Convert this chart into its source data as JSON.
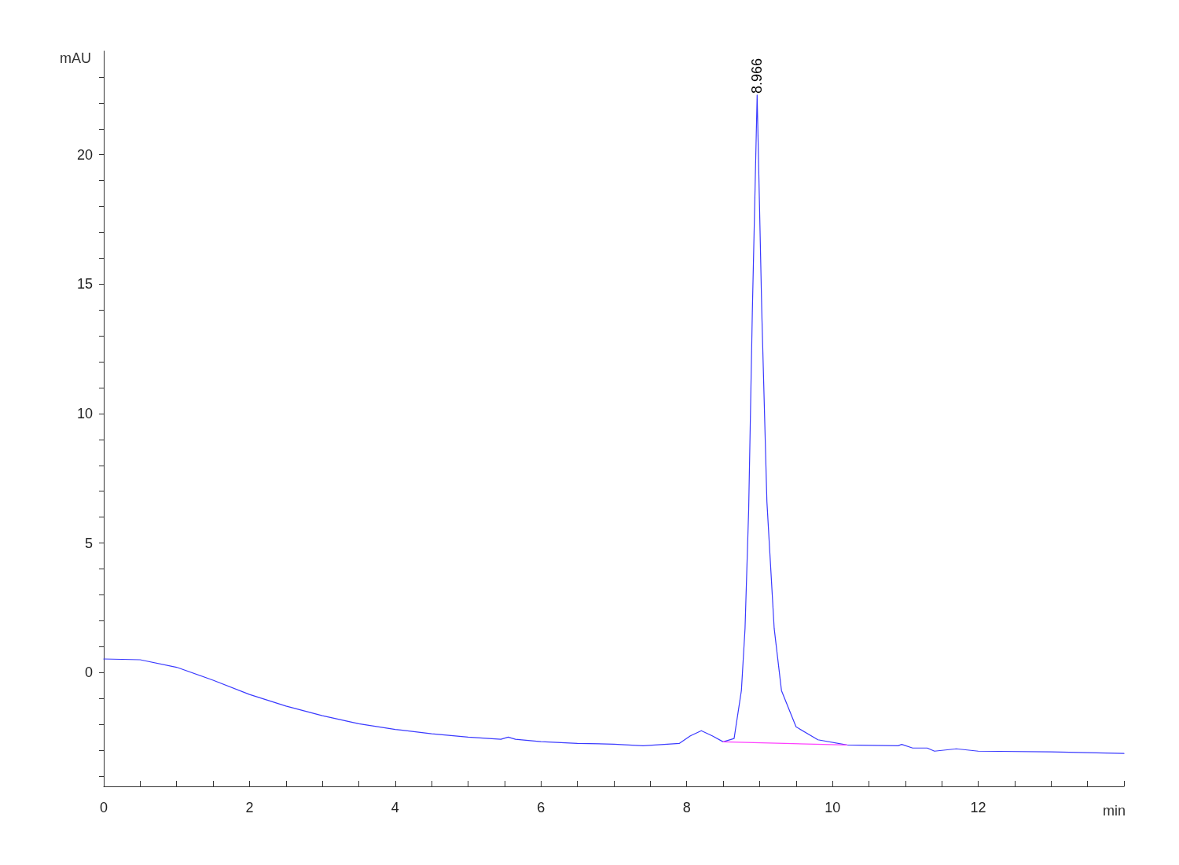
{
  "chart_data": {
    "type": "line",
    "xlabel": "min",
    "ylabel": "mAU",
    "xlim": [
      0,
      14
    ],
    "ylim": [
      -4.4,
      24
    ],
    "xticks": [
      0,
      {
        "value": 0.5,
        "label": null
      },
      {
        "value": 1,
        "label": null
      },
      {
        "value": 1.5,
        "label": null
      },
      2,
      {
        "value": 2.5,
        "label": null
      },
      {
        "value": 3,
        "label": null
      },
      {
        "value": 3.5,
        "label": null
      },
      4,
      {
        "value": 4.5,
        "label": null
      },
      {
        "value": 5,
        "label": null
      },
      {
        "value": 5.5,
        "label": null
      },
      6,
      {
        "value": 6.5,
        "label": null
      },
      {
        "value": 7,
        "label": null
      },
      {
        "value": 7.5,
        "label": null
      },
      8,
      {
        "value": 8.5,
        "label": null
      },
      {
        "value": 9,
        "label": null
      },
      {
        "value": 9.5,
        "label": null
      },
      10,
      {
        "value": 10.5,
        "label": null
      },
      {
        "value": 11,
        "label": null
      },
      {
        "value": 11.5,
        "label": null
      },
      12,
      {
        "value": 12.5,
        "label": null
      },
      {
        "value": 13,
        "label": null
      },
      {
        "value": 13.5,
        "label": null
      },
      {
        "value": 14,
        "label": null
      }
    ],
    "yticks": [
      {
        "value": -4,
        "label": null
      },
      {
        "value": -3,
        "label": null
      },
      {
        "value": -2,
        "label": null
      },
      {
        "value": -1,
        "label": null
      },
      0,
      {
        "value": 1,
        "label": null
      },
      {
        "value": 2,
        "label": null
      },
      {
        "value": 3,
        "label": null
      },
      {
        "value": 4,
        "label": null
      },
      5,
      {
        "value": 6,
        "label": null
      },
      {
        "value": 7,
        "label": null
      },
      {
        "value": 8,
        "label": null
      },
      {
        "value": 9,
        "label": null
      },
      10,
      {
        "value": 11,
        "label": null
      },
      {
        "value": 12,
        "label": null
      },
      {
        "value": 13,
        "label": null
      },
      {
        "value": 14,
        "label": null
      },
      15,
      {
        "value": 16,
        "label": null
      },
      {
        "value": 17,
        "label": null
      },
      {
        "value": 18,
        "label": null
      },
      {
        "value": 19,
        "label": null
      },
      20,
      {
        "value": 21,
        "label": null
      },
      {
        "value": 22,
        "label": null
      },
      {
        "value": 23,
        "label": null
      }
    ],
    "grid": false,
    "marker": "none",
    "line_style": "solid",
    "annotations": [
      {
        "text": "8.966",
        "x": 8.966,
        "y": 22.3
      }
    ],
    "series": [
      {
        "color": "#3a3aff",
        "x": [
          0,
          0.5,
          1,
          1.5,
          2,
          2.5,
          3,
          3.5,
          4,
          4.5,
          5,
          5.45,
          5.55,
          5.65,
          6,
          6.5,
          7,
          7.4,
          7.9,
          8.05,
          8.2,
          8.35,
          8.5,
          8.65,
          8.75,
          8.8,
          8.85,
          8.9,
          8.966,
          9.03,
          9.1,
          9.2,
          9.3,
          9.5,
          9.8,
          10.2,
          10.9,
          10.95,
          11.1,
          11.3,
          11.4,
          11.7,
          12,
          13,
          14
        ],
        "values": [
          0.52,
          0.49,
          0.2,
          -0.3,
          -0.85,
          -1.3,
          -1.67,
          -1.98,
          -2.2,
          -2.37,
          -2.5,
          -2.58,
          -2.5,
          -2.58,
          -2.67,
          -2.74,
          -2.77,
          -2.83,
          -2.74,
          -2.45,
          -2.25,
          -2.45,
          -2.68,
          -2.55,
          -0.7,
          1.7,
          6.3,
          13.9,
          22.3,
          13.9,
          6.6,
          1.7,
          -0.7,
          -2.1,
          -2.6,
          -2.8,
          -2.83,
          -2.78,
          -2.92,
          -2.92,
          -3.04,
          -2.95,
          -3.04,
          -3.07,
          -3.13
        ]
      },
      {
        "color": "#ff40ff",
        "x": [
          8.5,
          10.2
        ],
        "values": [
          -2.68,
          -2.8
        ]
      }
    ]
  }
}
